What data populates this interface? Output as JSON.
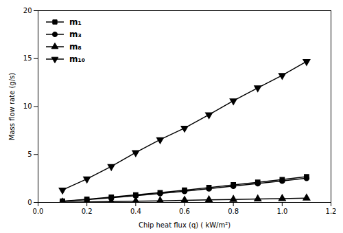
{
  "chart_data": {
    "type": "line",
    "x": [
      0.1,
      0.2,
      0.3,
      0.4,
      0.5,
      0.6,
      0.7,
      0.8,
      0.9,
      1.0,
      1.1
    ],
    "series": [
      {
        "name": "m₁",
        "color": "#000000",
        "marker": "square",
        "values": [
          0.13,
          0.33,
          0.55,
          0.78,
          1.02,
          1.28,
          1.55,
          1.83,
          2.1,
          2.38,
          2.68
        ]
      },
      {
        "name": "m₃",
        "color": "#000000",
        "marker": "circle",
        "values": [
          0.1,
          0.28,
          0.48,
          0.7,
          0.93,
          1.17,
          1.43,
          1.7,
          1.97,
          2.24,
          2.52
        ]
      },
      {
        "name": "m₈",
        "color": "#000000",
        "marker": "triangle-up",
        "values": [
          0.02,
          0.05,
          0.09,
          0.13,
          0.17,
          0.22,
          0.27,
          0.31,
          0.36,
          0.4,
          0.45
        ]
      },
      {
        "name": "m₁₀",
        "color": "#000000",
        "marker": "triangle-down",
        "values": [
          1.3,
          2.45,
          3.75,
          5.2,
          6.55,
          7.75,
          9.15,
          10.6,
          11.95,
          13.25,
          14.7
        ]
      }
    ],
    "xlabel": "Chip heat flux (q) ( kW/m²)",
    "ylabel": "Mass flow rate (g/s)",
    "xlim": [
      0.0,
      1.2
    ],
    "ylim": [
      0,
      20
    ],
    "xticks": [
      {
        "value": 0.0,
        "label": "0.0"
      },
      0.2,
      0.4,
      0.6,
      0.8,
      {
        "value": 1.0,
        "label": "1.0"
      },
      1.2
    ],
    "yticks": [
      0,
      5,
      10,
      15,
      20
    ],
    "legend": "upper left",
    "grid": false
  }
}
